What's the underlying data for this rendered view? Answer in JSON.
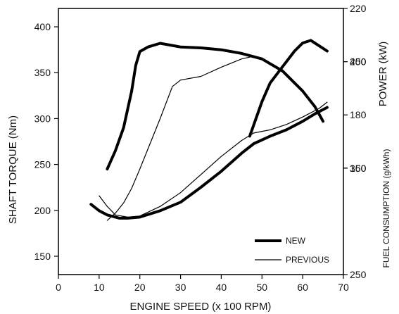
{
  "chart_data": {
    "type": "line",
    "xlabel": "ENGINE SPEED (x 100 RPM)",
    "ylabel_left": "SHAFT TORQUE (Nm)",
    "ylabel_right_top": "POWER (kW)",
    "ylabel_right_bottom": "FUEL CONSUMPTION (g/kWh)",
    "xlim": [
      0,
      70
    ],
    "x_ticks": [
      "0",
      "10",
      "20",
      "30",
      "40",
      "50",
      "60",
      "70"
    ],
    "torque_ylim": [
      130,
      420
    ],
    "torque_ticks": [
      "150",
      "200",
      "250",
      "300",
      "350",
      "400"
    ],
    "power_ylim": [
      120,
      220
    ],
    "power_ticks": [
      "160",
      "180",
      "200",
      "220"
    ],
    "fuel_ylim": [
      250,
      500
    ],
    "fuel_ticks": [
      "250",
      "350",
      "450"
    ],
    "legend": [
      {
        "label": "NEW",
        "style": "thick"
      },
      {
        "label": "PREVIOUS",
        "style": "thin"
      }
    ],
    "series": [
      {
        "name": "NEW",
        "quantity": "torque",
        "axis": "torque",
        "style": "thick",
        "points": [
          [
            12,
            245
          ],
          [
            14,
            265
          ],
          [
            16,
            290
          ],
          [
            18,
            330
          ],
          [
            19,
            358
          ],
          [
            20,
            373
          ],
          [
            22,
            378
          ],
          [
            25,
            382
          ],
          [
            30,
            378
          ],
          [
            35,
            377
          ],
          [
            40,
            375
          ],
          [
            45,
            371
          ],
          [
            50,
            365
          ],
          [
            55,
            352
          ],
          [
            60,
            330
          ],
          [
            63,
            313
          ],
          [
            65,
            297
          ]
        ]
      },
      {
        "name": "PREVIOUS",
        "quantity": "torque",
        "axis": "torque",
        "style": "thin",
        "points": [
          [
            12,
            189
          ],
          [
            14,
            197
          ],
          [
            16,
            208
          ],
          [
            18,
            224
          ],
          [
            20,
            245
          ],
          [
            22,
            267
          ],
          [
            25,
            300
          ],
          [
            28,
            335
          ],
          [
            30,
            342
          ],
          [
            35,
            346
          ],
          [
            40,
            356
          ],
          [
            45,
            365
          ],
          [
            48,
            368
          ]
        ]
      },
      {
        "name": "NEW",
        "quantity": "power",
        "axis": "power",
        "style": "thick",
        "points": [
          [
            47,
            172
          ],
          [
            50,
            185
          ],
          [
            52,
            192
          ],
          [
            55,
            198
          ],
          [
            58,
            204
          ],
          [
            60,
            207
          ],
          [
            62,
            208
          ],
          [
            64,
            206
          ],
          [
            66,
            204
          ]
        ]
      },
      {
        "name": "NEW",
        "quantity": "fuel consumption",
        "axis": "fuel",
        "style": "thick",
        "points": [
          [
            8,
            316
          ],
          [
            10,
            310
          ],
          [
            12,
            306
          ],
          [
            15,
            303
          ],
          [
            17,
            303
          ],
          [
            20,
            304
          ],
          [
            25,
            310
          ],
          [
            30,
            318
          ],
          [
            35,
            332
          ],
          [
            40,
            347
          ],
          [
            45,
            364
          ],
          [
            48,
            373
          ],
          [
            52,
            380
          ],
          [
            56,
            386
          ],
          [
            60,
            394
          ],
          [
            63,
            401
          ],
          [
            66,
            407
          ]
        ]
      },
      {
        "name": "PREVIOUS",
        "quantity": "fuel consumption",
        "axis": "fuel",
        "style": "thin",
        "points": [
          [
            10,
            324
          ],
          [
            12,
            314
          ],
          [
            14,
            306
          ],
          [
            17,
            304
          ],
          [
            20,
            305
          ],
          [
            25,
            314
          ],
          [
            30,
            327
          ],
          [
            35,
            344
          ],
          [
            40,
            361
          ],
          [
            45,
            376
          ],
          [
            48,
            383
          ],
          [
            52,
            386
          ],
          [
            56,
            391
          ],
          [
            60,
            398
          ],
          [
            64,
            406
          ],
          [
            66,
            412
          ]
        ]
      }
    ]
  }
}
